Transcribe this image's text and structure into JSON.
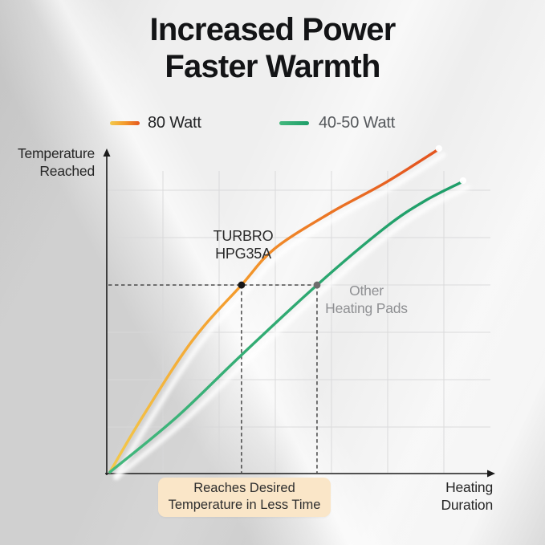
{
  "title": {
    "line1": "Increased Power",
    "line2": "Faster Warmth"
  },
  "chart_data": {
    "type": "line",
    "title": "Increased Power Faster Warmth",
    "xlabel": "Heating Duration",
    "ylabel": "Temperature Reached",
    "xlabel_lines": [
      "Heating",
      "Duration"
    ],
    "ylabel_lines": [
      "Temperature",
      "Reached"
    ],
    "axis_ticks": "none (qualitative axes with arrowheads)",
    "grid": true,
    "legend_position": "top",
    "series": [
      {
        "name": "80 Watt",
        "label_color": "#222325",
        "gradient": [
          "#F3C94B",
          "#F49B2C",
          "#E4561F"
        ],
        "points": [
          [
            0.004,
            0.002
          ],
          [
            0.087,
            0.171
          ],
          [
            0.216,
            0.408
          ],
          [
            0.342,
            0.579
          ],
          [
            0.427,
            0.691
          ],
          [
            0.571,
            0.802
          ],
          [
            0.711,
            0.894
          ],
          [
            0.845,
            0.995
          ]
        ]
      },
      {
        "name": "40-50 Watt",
        "label_color": "#55585C",
        "gradient": [
          "#43B87D",
          "#1E9E69"
        ],
        "points": [
          [
            0.004,
            0.002
          ],
          [
            0.175,
            0.171
          ],
          [
            0.34,
            0.361
          ],
          [
            0.536,
            0.579
          ],
          [
            0.712,
            0.757
          ],
          [
            0.814,
            0.839
          ],
          [
            0.907,
            0.896
          ]
        ]
      }
    ],
    "reference_line": {
      "y": 0.579,
      "style": "dashed",
      "from_x": 0.0,
      "to_x": 0.536
    },
    "markers": [
      {
        "series": "80 Watt",
        "x": 0.342,
        "y": 0.579,
        "color": "#171717",
        "style": "black-dot"
      },
      {
        "series": "40-50 Watt",
        "x": 0.536,
        "y": 0.579,
        "color": "#6D6D6D",
        "style": "gray-dot"
      }
    ],
    "annotations": [
      {
        "lines": [
          "TURBRO",
          "HPG35A"
        ],
        "series": "80 Watt",
        "color": "#2B2B2B"
      },
      {
        "lines": [
          "Other",
          "Heating Pads"
        ],
        "series": "40-50 Watt",
        "color": "#8F9093"
      }
    ],
    "callout": {
      "lines": [
        "Reaches Desired",
        "Temperature in Less Time"
      ],
      "bg": "#FAE6C8",
      "text_color": "#2E2E2E"
    }
  },
  "colors": {
    "background": "#EFEFEF",
    "axis": "#1B1B1B",
    "grid": "#D8D8D9",
    "dashed": "#3B3B3B",
    "title_text": "#131416",
    "curve_shadow": "#FFFFFF"
  }
}
